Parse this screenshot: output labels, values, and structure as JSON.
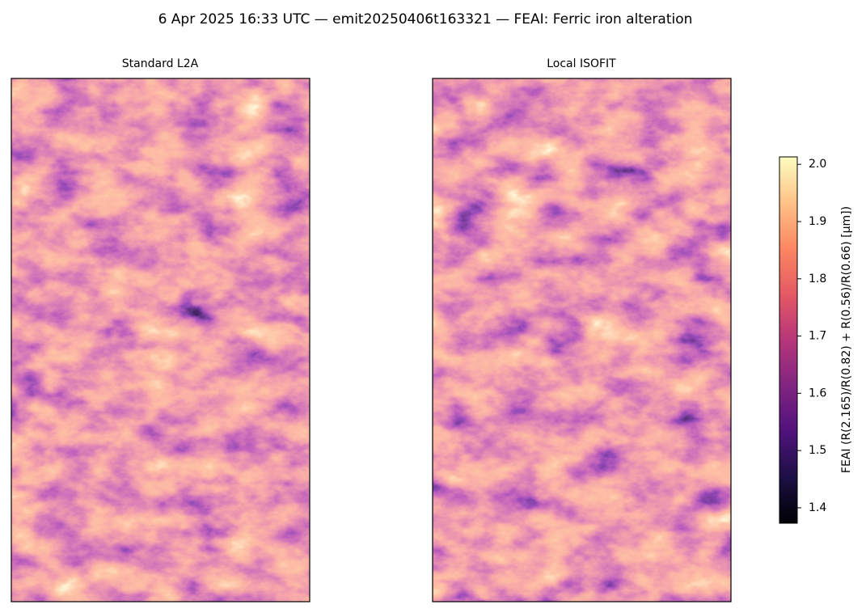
{
  "chart_data": {
    "type": "image",
    "title": "6 Apr 2025 16:33 UTC — emit20250406t163321 — FEAI: Ferric iron alteration",
    "panels": [
      {
        "title": "Standard L2A"
      },
      {
        "title": "Local ISOFIT"
      }
    ],
    "colorbar": {
      "label": "FEAI  (R(2.165)/R(0.82) + R(0.56)/R(0.66)  [µm])",
      "colormap": "magma",
      "lim": [
        1.373,
        2.013
      ],
      "ticks": [
        1.4,
        1.5,
        1.6,
        1.7,
        1.8,
        1.9,
        {
          "value": 2,
          "label": "2.0"
        }
      ]
    }
  }
}
